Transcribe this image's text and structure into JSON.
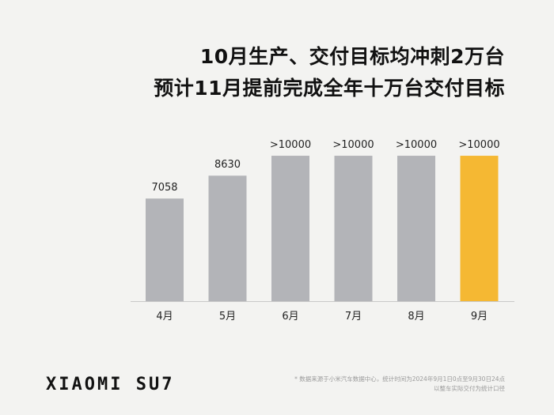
{
  "headline": {
    "line1": "10月生产、交付目标均冲刺2万台",
    "line2": "预计11月提前完成全年十万台交付目标"
  },
  "chart_data": {
    "type": "bar",
    "categories": [
      "4月",
      "5月",
      "6月",
      "7月",
      "8月",
      "9月"
    ],
    "values": [
      7058,
      8630,
      10000,
      10000,
      10000,
      10000
    ],
    "data_labels": [
      "7058",
      "8630",
      ">10000",
      ">10000",
      ">10000",
      ">10000"
    ],
    "highlight_index": 5,
    "colors": {
      "bar": "#b3b4b8",
      "highlight": "#f5b833",
      "axis": "#c9c9c9"
    },
    "grid": false,
    "title": "",
    "xlabel": "",
    "ylabel": ""
  },
  "brand": "XIAOMI SU7",
  "footnote": {
    "line1": "* 数据来源于小米汽车数据中心，统计时间为2024年9月1日0点至9月30日24点",
    "line2": "以整车实际交付为统计口径"
  }
}
